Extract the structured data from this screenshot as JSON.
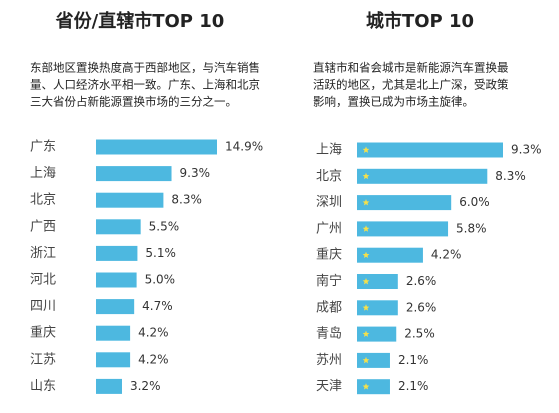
{
  "chart_data": [
    {
      "type": "bar",
      "orientation": "horizontal",
      "title": "省份/直辖市TOP 10",
      "description": [
        "东部地区置换热度高于西部地区，与汽车销售",
        "量、人口经济水平相一致。广东、上海和北京",
        "三大省份占新能源置换市场的三分之一。"
      ],
      "categories": [
        "广东",
        "上海",
        "北京",
        "广西",
        "浙江",
        "河北",
        "四川",
        "重庆",
        "江苏",
        "山东"
      ],
      "values": [
        14.9,
        9.3,
        8.3,
        5.5,
        5.1,
        5.0,
        4.7,
        4.2,
        4.2,
        3.2
      ],
      "value_labels": [
        "14.9%",
        "9.3%",
        "8.3%",
        "5.5%",
        "5.1%",
        "5.0%",
        "4.7%",
        "4.2%",
        "4.2%",
        "3.2%"
      ],
      "color": "#4db8e0"
    },
    {
      "type": "bar",
      "orientation": "horizontal",
      "title": "城市TOP 10",
      "description": [
        "直辖市和省会城市是新能源汽车置换最",
        "活跃的地区，尤其是北上广深，受政策",
        "影响，置换已成为市场主旋律。"
      ],
      "categories": [
        "上海",
        "北京",
        "深圳",
        "广州",
        "重庆",
        "南宁",
        "成都",
        "青岛",
        "苏州",
        "天津"
      ],
      "values": [
        9.3,
        8.3,
        6.0,
        5.8,
        4.2,
        2.6,
        2.6,
        2.5,
        2.1,
        2.1
      ],
      "value_labels": [
        "9.3%",
        "8.3%",
        "6.0%",
        "5.8%",
        "4.2%",
        "2.6%",
        "2.6%",
        "2.5%",
        "2.1%",
        "2.1%"
      ],
      "color": "#4db8e0"
    }
  ]
}
